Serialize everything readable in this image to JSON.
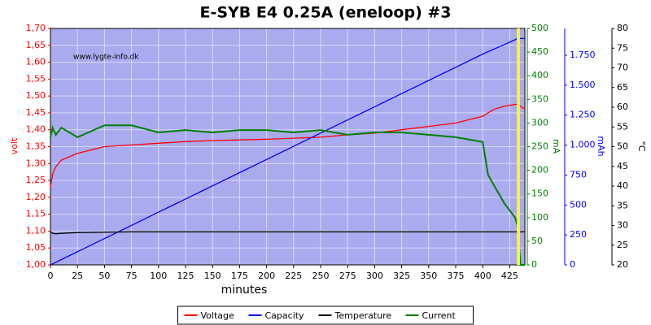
{
  "chart_data": {
    "type": "line",
    "title": "E-SYB E4 0.25A (eneloop) #3",
    "annotation": "www.lygte-info.dk",
    "x_label": "minutes",
    "y_label": "volt",
    "y2_label": "mA",
    "y3_label": "mAh",
    "y4_label": "°C",
    "grid": true,
    "legend": "bottom",
    "background": "#aaaaee",
    "xlim": [
      0,
      439
    ],
    "xticks": [
      0,
      25,
      50,
      75,
      100,
      125,
      150,
      175,
      200,
      225,
      250,
      275,
      300,
      325,
      350,
      375,
      400,
      425
    ],
    "ylim": [
      1.0,
      1.7
    ],
    "yticks": [
      {
        "value": 1.0,
        "label": "1,00"
      },
      {
        "value": 1.05,
        "label": "1,05"
      },
      {
        "value": 1.1,
        "label": "1,10"
      },
      {
        "value": 1.15,
        "label": "1,15"
      },
      {
        "value": 1.2,
        "label": "1,20"
      },
      {
        "value": 1.25,
        "label": "1,25"
      },
      {
        "value": 1.3,
        "label": "1,30"
      },
      {
        "value": 1.35,
        "label": "1,35"
      },
      {
        "value": 1.4,
        "label": "1,40"
      },
      {
        "value": 1.45,
        "label": "1,45"
      },
      {
        "value": 1.5,
        "label": "1,50"
      },
      {
        "value": 1.55,
        "label": "1,55"
      },
      {
        "value": 1.6,
        "label": "1,60"
      },
      {
        "value": 1.65,
        "label": "1,65"
      },
      {
        "value": 1.7,
        "label": "1,70"
      }
    ],
    "y2lim": [
      0,
      500
    ],
    "y2ticks": [
      0,
      50,
      100,
      150,
      200,
      250,
      300,
      350,
      400,
      450,
      500
    ],
    "y3lim": [
      0,
      1974
    ],
    "y3ticks": [
      0,
      250,
      500,
      750,
      {
        "value": 1000,
        "label": "1.000"
      },
      {
        "value": 1250,
        "label": "1.250"
      },
      {
        "value": 1500,
        "label": "1.500"
      },
      {
        "value": 1750,
        "label": "1.750"
      }
    ],
    "y4lim": [
      20,
      80
    ],
    "y4ticks": [
      20,
      25,
      30,
      35,
      40,
      45,
      50,
      55,
      60,
      65,
      70,
      75,
      80
    ],
    "markers": [
      {
        "x": 433,
        "color": "#ffff00"
      }
    ],
    "x": [
      0,
      2,
      5,
      10,
      25,
      50,
      75,
      100,
      125,
      150,
      175,
      200,
      225,
      250,
      275,
      300,
      325,
      350,
      375,
      400,
      405,
      410,
      420,
      430,
      432,
      435,
      437,
      439
    ],
    "series": [
      {
        "name": "Voltage",
        "color": "#ff0000",
        "axis": "y",
        "values": [
          1.23,
          1.27,
          1.29,
          1.31,
          1.33,
          1.35,
          1.355,
          1.36,
          1.365,
          1.368,
          1.37,
          1.372,
          1.375,
          1.378,
          1.385,
          1.39,
          1.4,
          1.41,
          1.42,
          1.44,
          1.45,
          1.46,
          1.47,
          1.475,
          1.475,
          1.47,
          1.465,
          1.462
        ]
      },
      {
        "name": "Capacity",
        "color": "#0000ff",
        "axis": "y3",
        "values": [
          0,
          9,
          22,
          44,
          110,
          220,
          330,
          440,
          550,
          660,
          770,
          880,
          990,
          1100,
          1210,
          1320,
          1430,
          1540,
          1650,
          1760,
          1780,
          1800,
          1840,
          1880,
          1890,
          1890,
          1890,
          1890
        ]
      },
      {
        "name": "Temperature",
        "color": "#000000",
        "axis": "y4",
        "values": [
          28.5,
          28.0,
          27.9,
          28.0,
          28.2,
          28.3,
          28.4,
          28.4,
          28.4,
          28.4,
          28.4,
          28.4,
          28.4,
          28.4,
          28.4,
          28.4,
          28.4,
          28.4,
          28.4,
          28.4,
          28.4,
          28.4,
          28.4,
          28.4,
          28.4,
          28.4,
          28.4,
          28.4
        ]
      },
      {
        "name": "Current",
        "color": "#008000",
        "axis": "y2",
        "values": [
          270,
          290,
          275,
          290,
          270,
          295,
          295,
          280,
          285,
          280,
          285,
          285,
          280,
          285,
          275,
          280,
          280,
          275,
          270,
          260,
          190,
          170,
          130,
          100,
          85,
          0,
          0,
          0
        ]
      }
    ]
  }
}
